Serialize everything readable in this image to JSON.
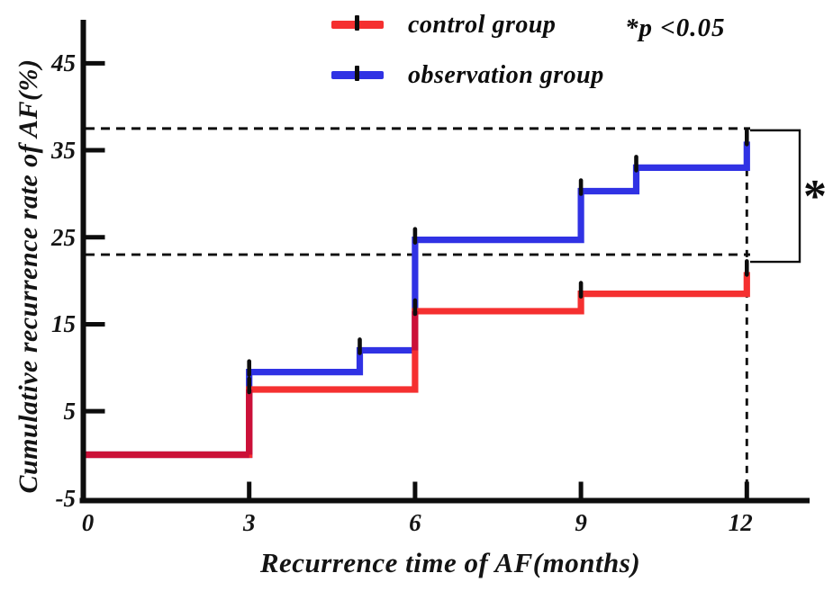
{
  "chart_data": {
    "type": "line",
    "subtype": "step",
    "title": "",
    "xlabel": "Recurrence time of AF(months)",
    "ylabel": "Cumulative recurrence rate of AF(%)",
    "x_ticks": [
      0,
      3,
      6,
      9,
      12
    ],
    "y_ticks": [
      -5,
      5,
      15,
      25,
      35,
      45
    ],
    "xlim": [
      0,
      13.5
    ],
    "ylim": [
      -5,
      50
    ],
    "grid": false,
    "legend_position": "top-center",
    "series": [
      {
        "name": "control group",
        "color": "#f53030",
        "points": [
          [
            0,
            0
          ],
          [
            3,
            7.5
          ],
          [
            6,
            16.5
          ],
          [
            9,
            18.5
          ],
          [
            12,
            21
          ]
        ]
      },
      {
        "name": "observation group",
        "color": "#3032e4",
        "points": [
          [
            0,
            0
          ],
          [
            3,
            9.5
          ],
          [
            5,
            12
          ],
          [
            6,
            24.7
          ],
          [
            9,
            30.3
          ],
          [
            10,
            33
          ],
          [
            12,
            36
          ]
        ]
      }
    ],
    "overlap_color": "#cb1038",
    "error_tick_color": "#0d0d0d",
    "annotations": {
      "p_text": "*p <0.05",
      "significance_marker": "*",
      "dashed_h_values": [
        37.5,
        23
      ],
      "dashed_v_value": 12
    }
  }
}
